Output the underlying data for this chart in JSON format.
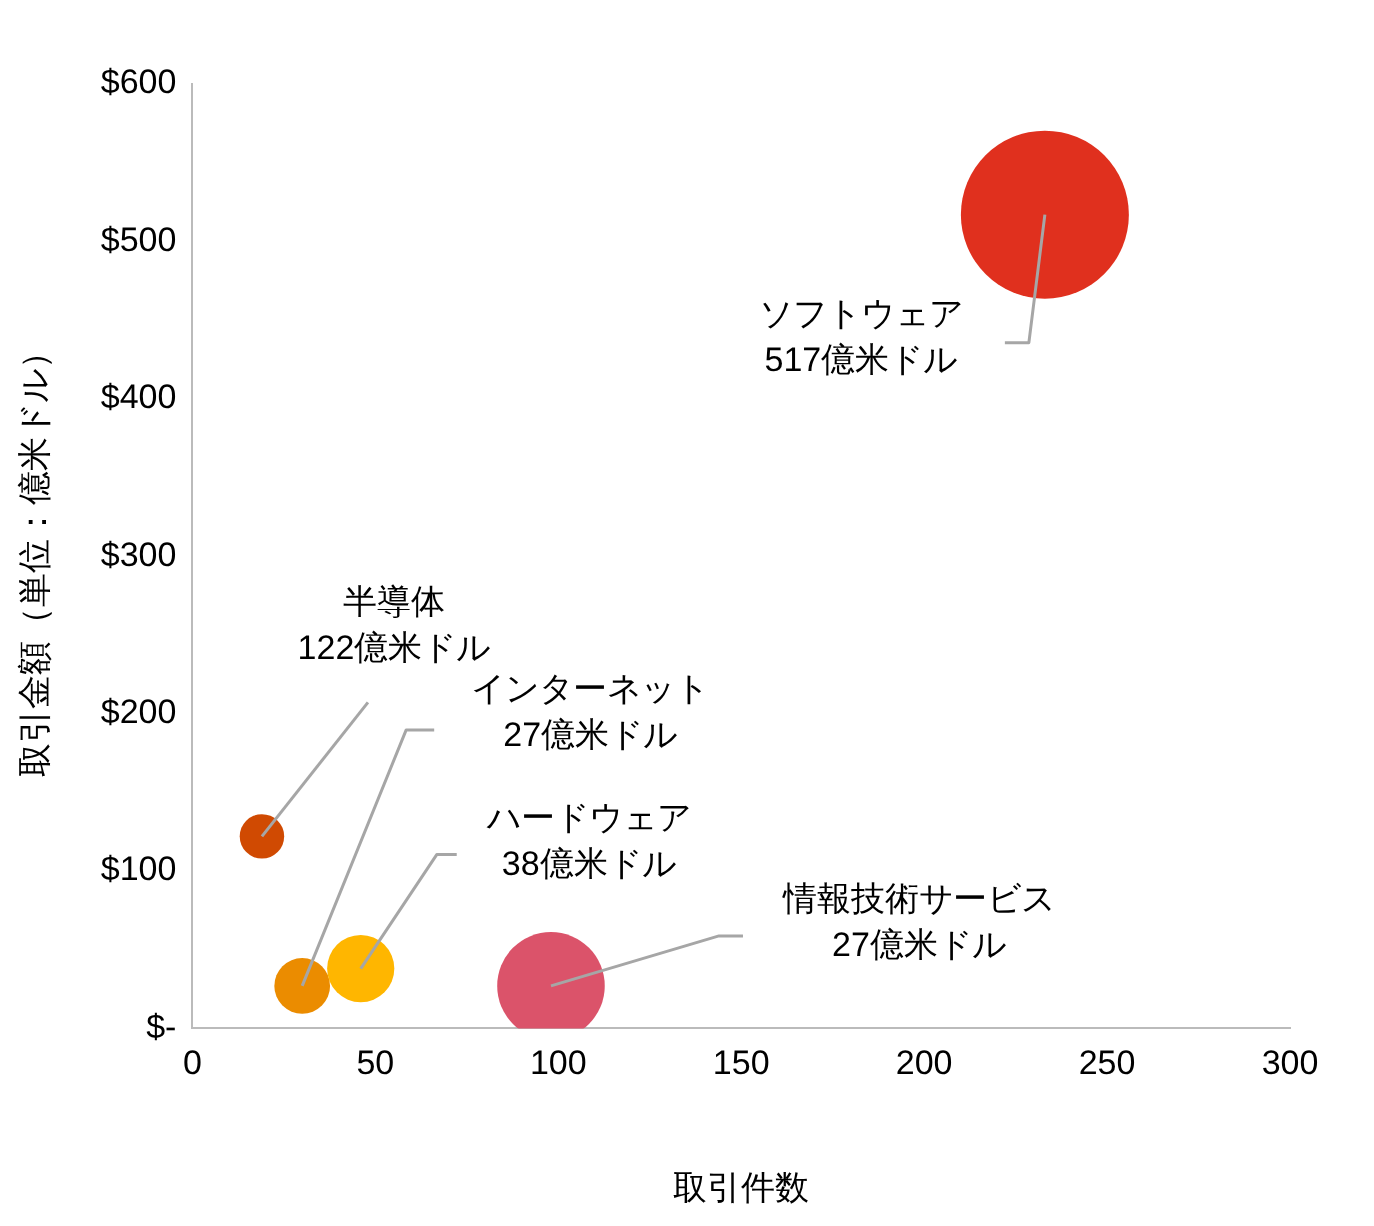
{
  "chart_data": {
    "type": "bubble",
    "xlabel": "取引件数",
    "ylabel": "取引金額（単位：億米ドル）",
    "xlim": [
      0,
      300
    ],
    "xticks": [
      0,
      50,
      100,
      150,
      200,
      250,
      300
    ],
    "ylim": [
      0,
      600
    ],
    "yticks": [
      {
        "value": 0,
        "label": "$-"
      },
      {
        "value": 100,
        "label": "$100"
      },
      {
        "value": 200,
        "label": "$200"
      },
      {
        "value": 300,
        "label": "$300"
      },
      {
        "value": 400,
        "label": "$400"
      },
      {
        "value": 500,
        "label": "$500"
      },
      {
        "value": 600,
        "label": "$600"
      }
    ],
    "x": [
      233,
      19,
      30,
      46,
      98
    ],
    "values": [
      517,
      122,
      27,
      38,
      27
    ],
    "sizes": [
      1,
      0.07,
      0.11,
      0.16,
      0.41
    ],
    "colors": [
      "#e0301e",
      "#d04a02",
      "#eb8c00",
      "#ffb600",
      "#db536a"
    ],
    "grid": false,
    "legend": false,
    "annotations": [
      {
        "text": "ソフトウェア\n517億米ドル",
        "x": 233,
        "y": 517
      },
      {
        "text": "半導体\n122億米ドル",
        "x": 19,
        "y": 122
      },
      {
        "text": "インターネット\n27億米ドル",
        "x": 30,
        "y": 27
      },
      {
        "text": "ハードウェア\n38億米ドル",
        "x": 46,
        "y": 38
      },
      {
        "text": "情報技術サービス\n27億米ドル",
        "x": 98,
        "y": 27
      }
    ]
  }
}
